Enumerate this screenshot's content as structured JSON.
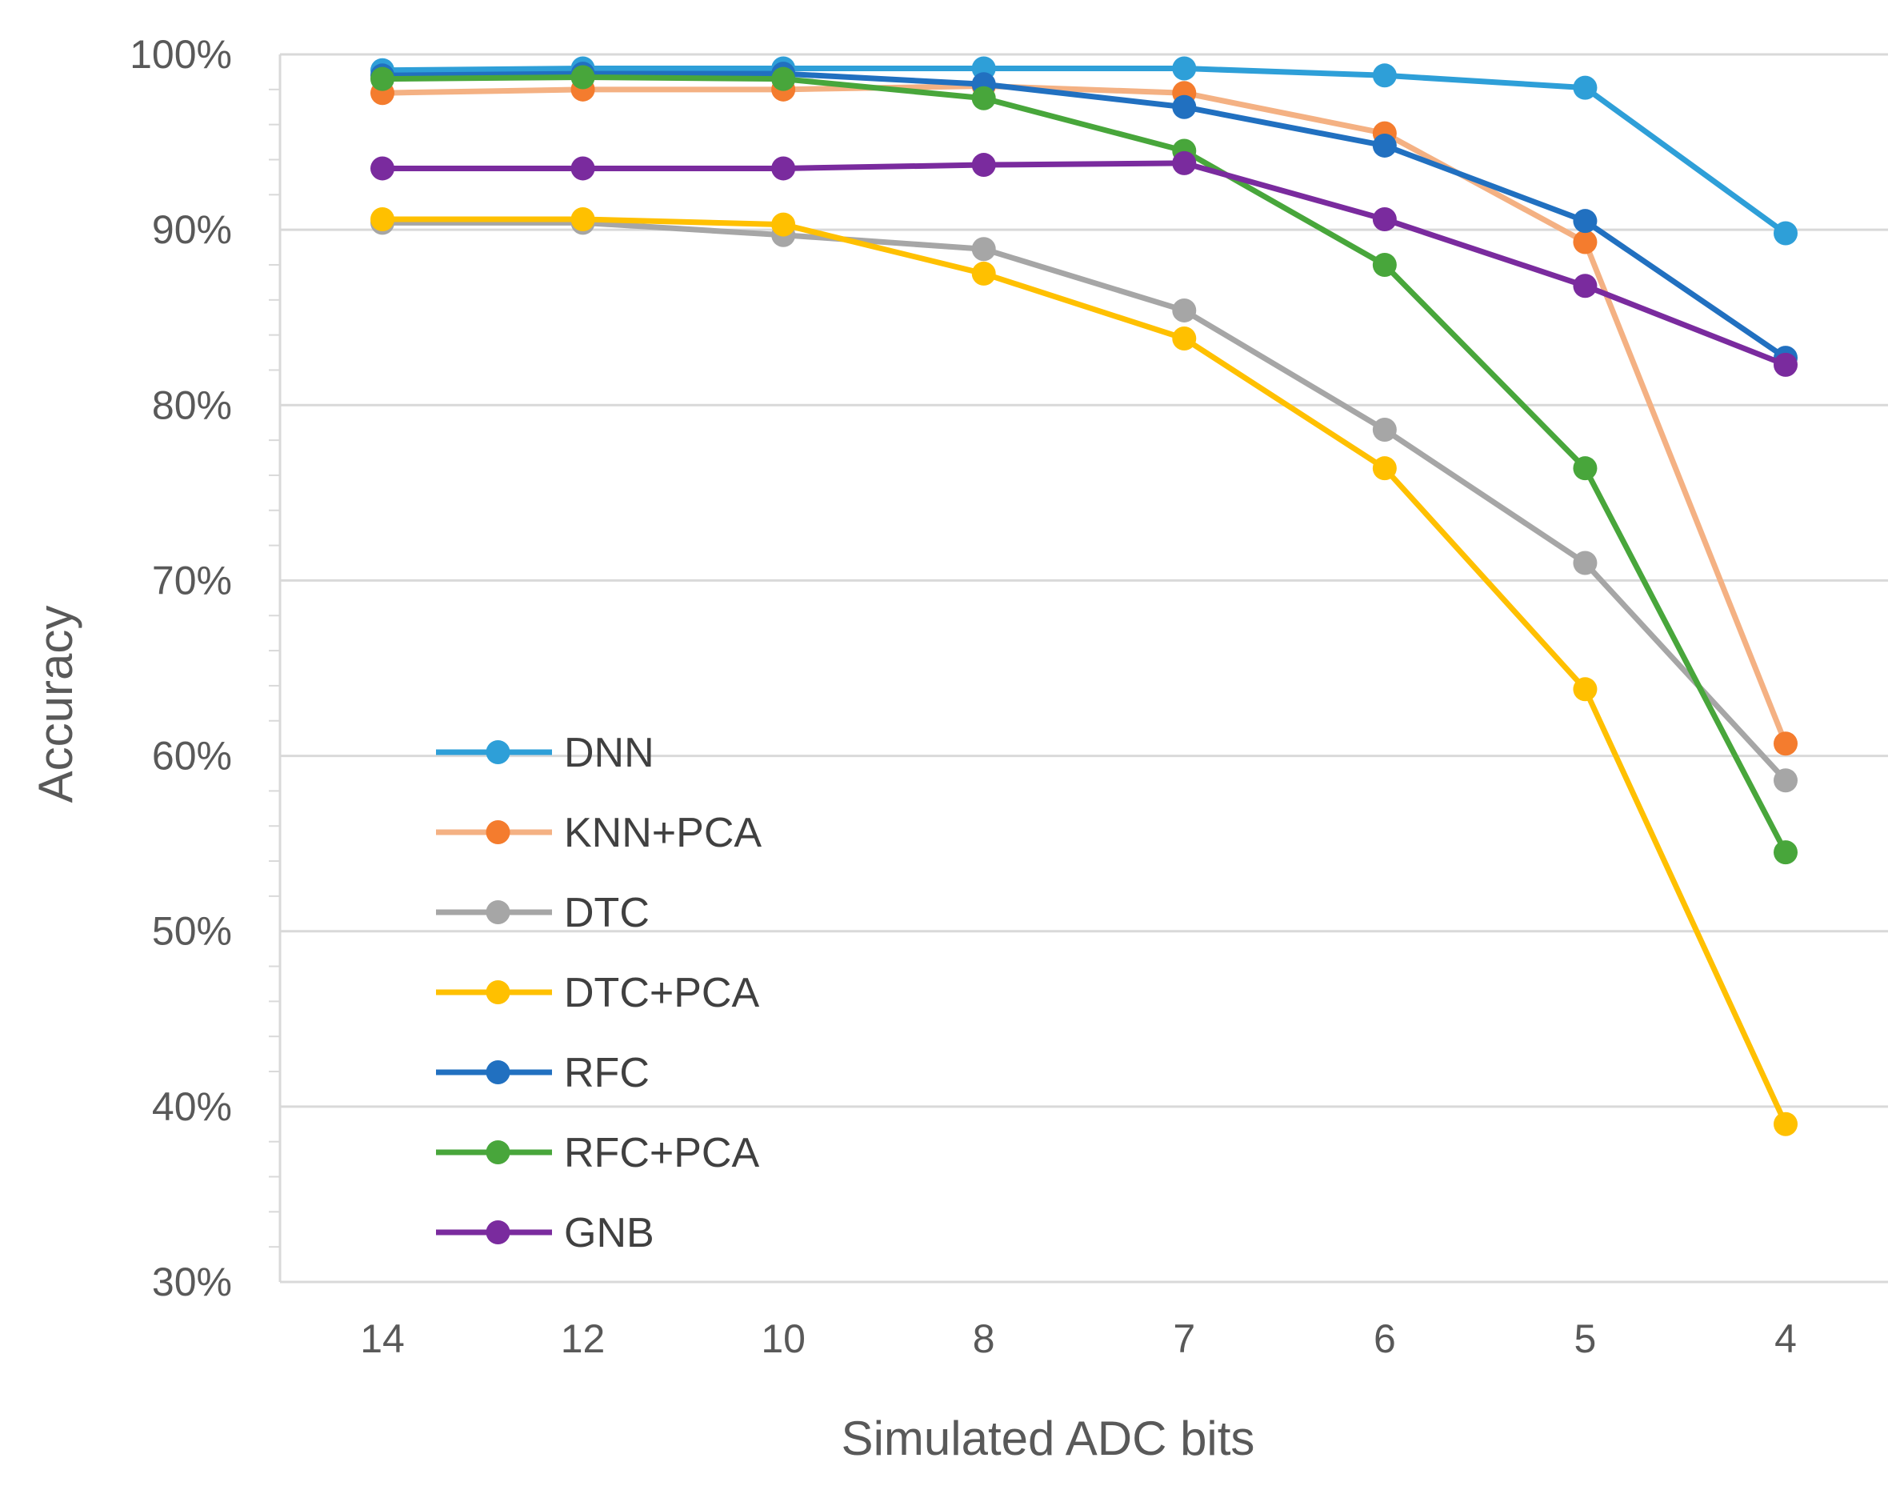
{
  "chart_data": {
    "type": "line",
    "xlabel": "Simulated ADC bits",
    "ylabel": "Accuracy",
    "categories": [
      "14",
      "12",
      "10",
      "8",
      "7",
      "6",
      "5",
      "4"
    ],
    "ylim": [
      30,
      100
    ],
    "yticks": [
      30,
      40,
      50,
      60,
      70,
      80,
      90,
      100
    ],
    "ytick_labels": [
      "30%",
      "40%",
      "50%",
      "60%",
      "70%",
      "80%",
      "90%",
      "100%"
    ],
    "grid": "horizontal",
    "legend_position": "left",
    "series": [
      {
        "name": "DNN",
        "color": "#2E9FD8",
        "values": [
          99.1,
          99.2,
          99.2,
          99.2,
          99.2,
          98.8,
          98.1,
          89.8
        ]
      },
      {
        "name": "KNN+PCA",
        "color": "#F4B183",
        "marker_color": "#F47C2E",
        "values": [
          97.8,
          98.0,
          98.0,
          98.2,
          97.8,
          95.5,
          89.3,
          60.7
        ]
      },
      {
        "name": "DTC",
        "color": "#A6A6A6",
        "values": [
          90.4,
          90.4,
          89.7,
          88.9,
          85.4,
          78.6,
          71.0,
          58.6
        ]
      },
      {
        "name": "DTC+PCA",
        "color": "#FFC000",
        "values": [
          90.6,
          90.6,
          90.3,
          87.5,
          83.8,
          76.4,
          63.8,
          39.0
        ]
      },
      {
        "name": "RFC",
        "color": "#2170C0",
        "values": [
          98.8,
          98.9,
          98.9,
          98.3,
          97.0,
          94.8,
          90.5,
          82.7
        ]
      },
      {
        "name": "RFC+PCA",
        "color": "#48A63B",
        "values": [
          98.6,
          98.7,
          98.6,
          97.5,
          94.5,
          88.0,
          76.4,
          54.5
        ]
      },
      {
        "name": "GNB",
        "color": "#7A2B9E",
        "values": [
          93.5,
          93.5,
          93.5,
          93.7,
          93.8,
          90.6,
          86.8,
          82.3
        ]
      }
    ]
  }
}
